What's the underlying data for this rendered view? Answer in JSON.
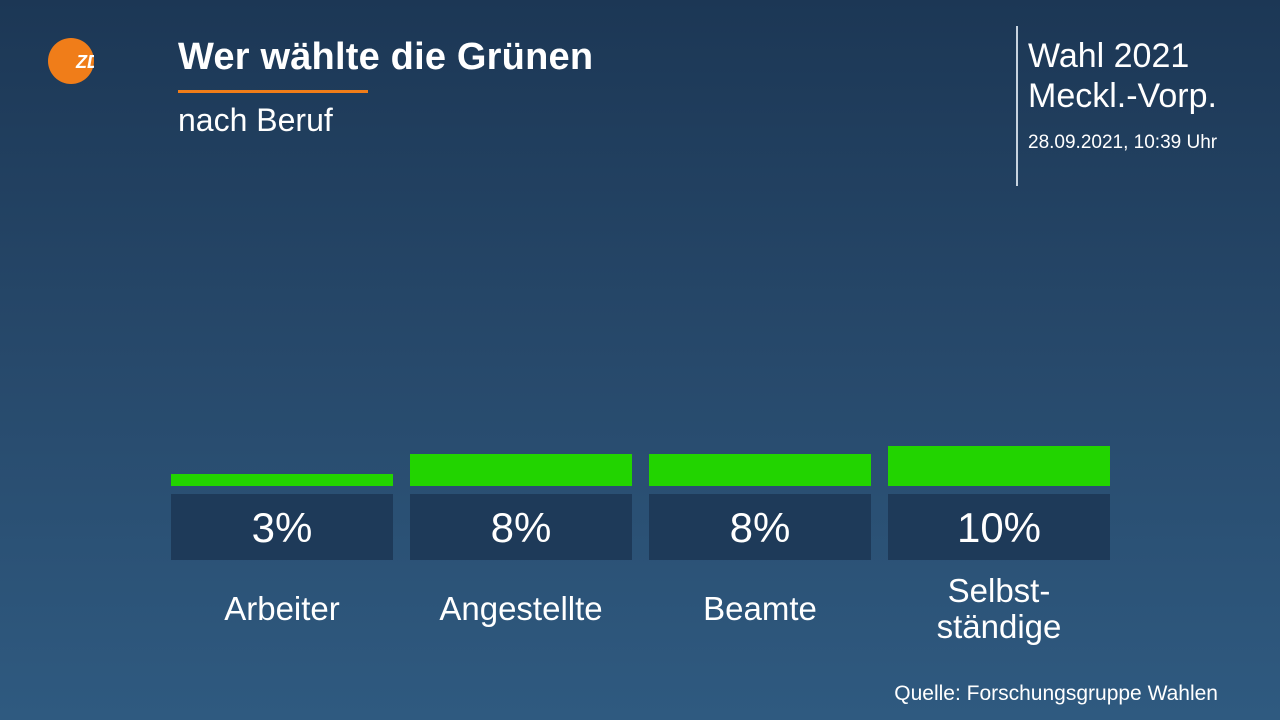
{
  "header": {
    "title": "Wer wählte die Grünen",
    "subtitle": "nach Beruf",
    "election": "Wahl 2021\nMeckl.-Vorp.",
    "timestamp": "28.09.2021, 10:39 Uhr",
    "logo_icon": "zdf-logo-icon",
    "logo_text": "ZDF"
  },
  "footer": {
    "source": "Quelle: Forschungsgruppe Wahlen"
  },
  "colors": {
    "bar": "#22d400",
    "value_box": "#1e3a59",
    "accent": "#f07d19"
  },
  "chart_data": {
    "type": "bar",
    "title": "Wer wählte die Grünen",
    "subtitle": "nach Beruf",
    "categories": [
      "Arbeiter",
      "Angestellte",
      "Beamte",
      "Selbst-\nständige"
    ],
    "values": [
      3,
      8,
      8,
      10
    ],
    "value_labels": [
      "3%",
      "8%",
      "8%",
      "10%"
    ],
    "unit": "%"
  }
}
